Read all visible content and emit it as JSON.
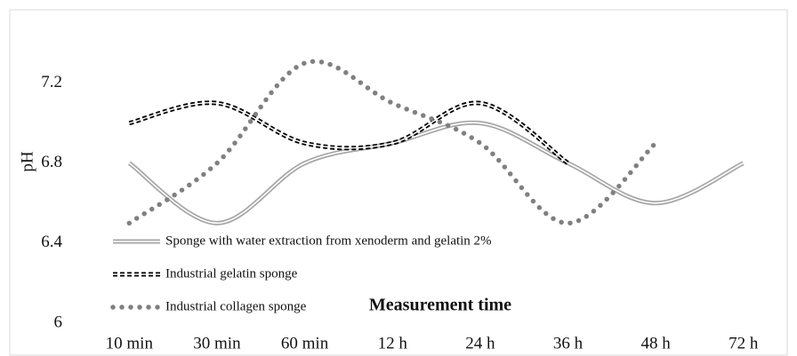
{
  "chart_data": {
    "type": "line",
    "categories": [
      "10 min",
      "30 min",
      "60 min",
      "12 h",
      "24 h",
      "36 h",
      "48 h",
      "72 h"
    ],
    "series": [
      {
        "name": "Sponge with water extraction from xenoderm and gelatin 2%",
        "color": "#a6a6a6",
        "values": [
          6.8,
          6.5,
          6.8,
          6.9,
          7.0,
          6.8,
          6.6,
          6.8
        ]
      },
      {
        "name": "Industrial gelatin sponge",
        "color": "#000000",
        "values": [
          7.0,
          7.1,
          6.9,
          6.9,
          7.1,
          6.8,
          null,
          null
        ]
      },
      {
        "name": "Industrial collagen sponge",
        "color": "#808080",
        "values": [
          6.5,
          6.8,
          7.3,
          7.1,
          6.9,
          6.5,
          6.9,
          null
        ]
      }
    ],
    "x_label": "Measurement time",
    "y_label": "pH",
    "ylim": [
      6,
      7.5
    ],
    "yticks": [
      6,
      6.4,
      6.8,
      7.2
    ]
  }
}
